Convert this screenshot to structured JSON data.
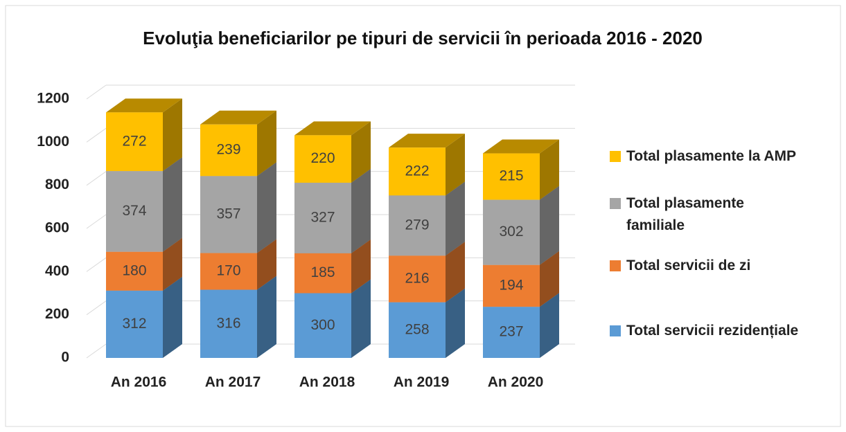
{
  "chart_data": {
    "type": "bar3d_stacked",
    "title": "Evoluţia beneficiarilor pe tipuri de servicii în perioada 2016 - 2020",
    "categories": [
      "An 2016",
      "An 2017",
      "An 2018",
      "An 2019",
      "An 2020"
    ],
    "series": [
      {
        "name": "Total servicii rezidențiale",
        "color": "#5b9bd5",
        "values": [
          312,
          316,
          300,
          258,
          237
        ]
      },
      {
        "name": "Total servicii de zi",
        "color": "#ed7d31",
        "values": [
          180,
          170,
          185,
          216,
          194
        ]
      },
      {
        "name": "Total plasamente familiale",
        "color": "#a5a5a5",
        "values": [
          374,
          357,
          327,
          279,
          302
        ]
      },
      {
        "name": "Total plasamente la AMP",
        "color": "#ffc000",
        "values": [
          272,
          239,
          220,
          222,
          215
        ]
      }
    ],
    "ylim": [
      0,
      1200
    ],
    "yticks": [
      0,
      200,
      400,
      600,
      800,
      1000,
      1200
    ],
    "grid": true,
    "legend": "right"
  }
}
